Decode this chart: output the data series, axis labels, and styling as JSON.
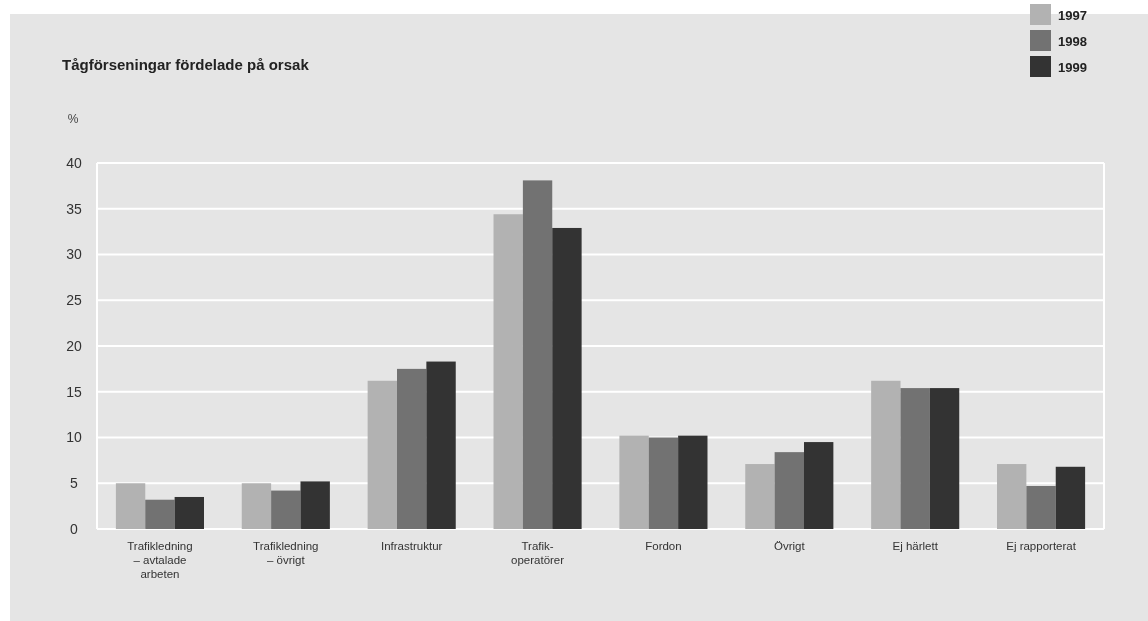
{
  "chart_data": {
    "type": "bar",
    "title": "Tågförseningar fördelade på orsak",
    "ylabel": "%",
    "categories": [
      "Trafikledning\n– avtalade\narbeten",
      "Trafikledning\n– övrigt",
      "Infrastruktur",
      "Trafik-\noperatörer",
      "Fordon",
      "Övrigt",
      "Ej härlett",
      "Ej rapporterat"
    ],
    "series": [
      {
        "name": "1997",
        "color": "#b2b2b2",
        "values": [
          5.0,
          5.0,
          16.2,
          34.4,
          10.2,
          7.1,
          16.2,
          7.1
        ]
      },
      {
        "name": "1998",
        "color": "#727272",
        "values": [
          3.2,
          4.2,
          17.5,
          38.1,
          10.0,
          8.4,
          15.4,
          4.7
        ]
      },
      {
        "name": "1999",
        "color": "#333333",
        "values": [
          3.5,
          5.2,
          18.3,
          32.9,
          10.2,
          9.5,
          15.4,
          6.8
        ]
      }
    ],
    "ylim": [
      0,
      40
    ],
    "yticks": [
      0,
      5,
      10,
      15,
      20,
      25,
      30,
      35,
      40
    ],
    "grid": "y",
    "legend": "top right"
  }
}
